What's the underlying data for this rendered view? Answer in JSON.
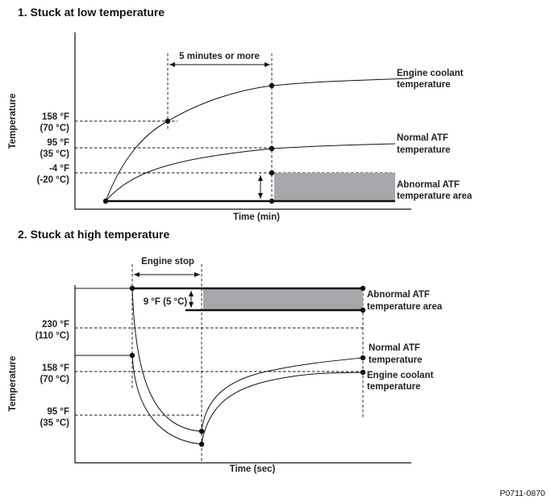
{
  "diagram1": {
    "title": "1. Stuck at low temperature",
    "y_axis_label": "Temperature",
    "x_axis_label": "Time (min)",
    "interval_label": "5 minutes or more",
    "levels": [
      {
        "f": "158 °F",
        "c": "(70 °C)"
      },
      {
        "f": "95 °F",
        "c": "(35 °C)"
      },
      {
        "f": "-4 °F",
        "c": "(-20 °C)"
      }
    ],
    "curves": {
      "coolant": [
        "Engine coolant",
        "temperature"
      ],
      "normal_atf": [
        "Normal ATF",
        "temperature"
      ],
      "abnormal_area": [
        "Abnormal ATF",
        "temperature area"
      ]
    },
    "area_color": "#a7a8ab"
  },
  "diagram2": {
    "title": "2. Stuck at high temperature",
    "y_axis_label": "Temperature",
    "x_axis_label": "Time (sec)",
    "interval_label": "Engine stop",
    "band_label": "9 °F (5 °C)",
    "levels": [
      {
        "f": "230 °F",
        "c": "(110 °C)"
      },
      {
        "f": "158 °F",
        "c": "(70 °C)"
      },
      {
        "f": "95 °F",
        "c": "(35 °C)"
      }
    ],
    "curves": {
      "abnormal_area": [
        "Abnormal ATF",
        "temperature area"
      ],
      "normal_atf": [
        "Normal ATF",
        "temperature"
      ],
      "coolant": [
        "Engine coolant",
        "temperature"
      ]
    },
    "area_color": "#a7a8ab"
  },
  "figure_id": "P0711-0870"
}
